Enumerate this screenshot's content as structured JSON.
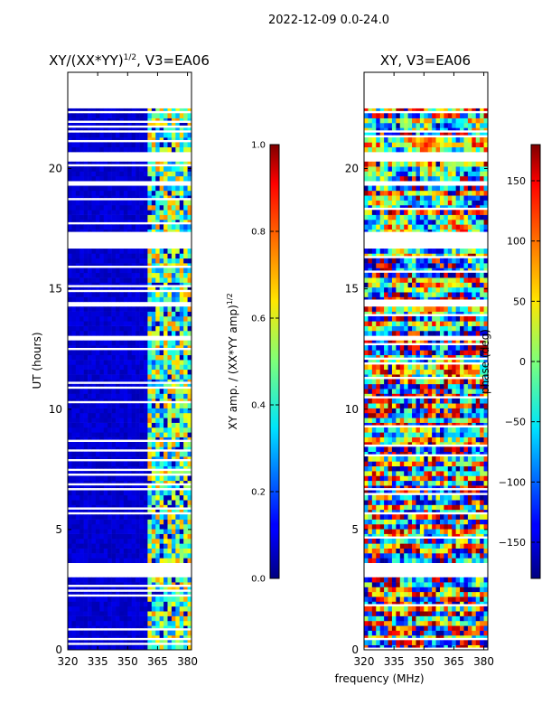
{
  "chart_data": [
    {
      "type": "heatmap",
      "suptitle": "2022-12-09 0.0-24.0",
      "title_main": "XY/(XX*YY)",
      "title_sup": "1/2",
      "title_tail": ", V3=EA06",
      "xlabel": "",
      "ylabel": "UT (hours)",
      "xlim": [
        320,
        382
      ],
      "ylim": [
        0,
        24
      ],
      "xticks": [
        320,
        335,
        350,
        365,
        380
      ],
      "yticks": [
        0,
        5,
        10,
        15,
        20
      ],
      "data_ut_range": [
        0,
        22.5
      ],
      "bright_channels_mhz": [
        360,
        381
      ],
      "blank_ut_bands": [
        [
          3.0,
          3.6
        ],
        [
          12.85,
          13.1
        ],
        [
          14.3,
          14.55
        ],
        [
          16.6,
          17.0
        ],
        [
          17.15,
          17.35
        ],
        [
          19.25,
          19.4
        ],
        [
          20.35,
          20.6
        ]
      ],
      "colorbar": {
        "label_main": "XY amp. / (XX*YY amp)",
        "label_sup": "1/2",
        "range": [
          0.0,
          1.0
        ],
        "ticks": [
          "0.0",
          "0.2",
          "0.4",
          "0.6",
          "0.8",
          "1.0"
        ]
      }
    },
    {
      "type": "heatmap",
      "title": "XY, V3=EA06",
      "xlabel": "frequency (MHz)",
      "ylabel": "",
      "xlim": [
        320,
        382
      ],
      "ylim": [
        0,
        24
      ],
      "xticks": [
        320,
        335,
        350,
        365,
        380
      ],
      "yticks": [
        0,
        5,
        10,
        15,
        20
      ],
      "data_ut_range": [
        0,
        22.5
      ],
      "blank_ut_bands": [
        [
          3.0,
          3.6
        ],
        [
          12.85,
          13.1
        ],
        [
          14.3,
          14.55
        ],
        [
          16.6,
          17.0
        ],
        [
          17.15,
          17.35
        ],
        [
          19.25,
          19.4
        ],
        [
          20.35,
          20.6
        ]
      ],
      "colorbar": {
        "label": "phase (deg)",
        "range": [
          -180,
          180
        ],
        "ticks": [
          "−150",
          "−100",
          "−50",
          "0",
          "50",
          "100",
          "150"
        ],
        "tick_values": [
          -150,
          -100,
          -50,
          0,
          50,
          100,
          150
        ]
      }
    }
  ]
}
